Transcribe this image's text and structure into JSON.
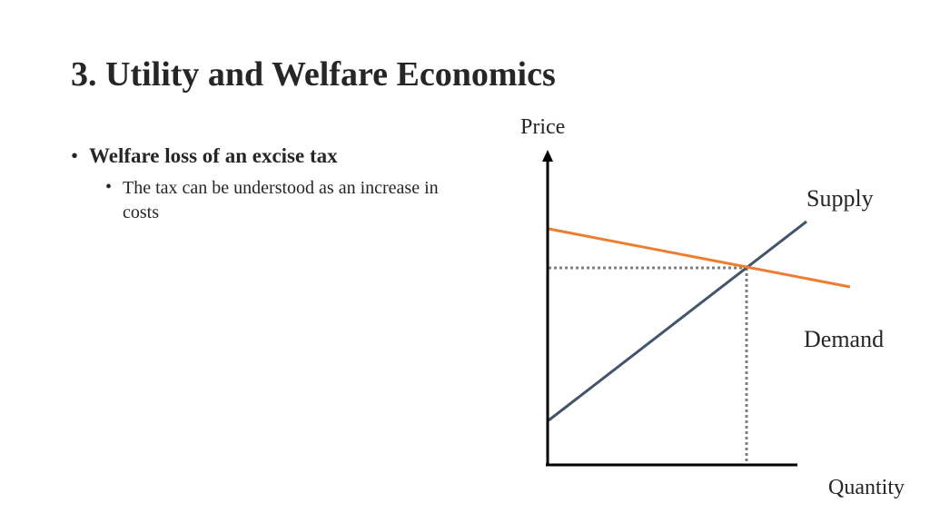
{
  "slide": {
    "title": "3. Utility and Welfare Economics",
    "bullets": [
      {
        "text": "Welfare loss of an excise tax",
        "sub_bullets": [
          {
            "text": "The tax can be understood as an increase in costs"
          }
        ]
      }
    ]
  },
  "diagram": {
    "axis_labels": {
      "y": "Price",
      "x": "Quantity"
    },
    "curves": {
      "supply": {
        "label": "Supply",
        "color": "#44546a"
      },
      "demand": {
        "label": "Demand",
        "color": "#ed7d31"
      }
    },
    "equilibrium_guide_color": "#7f7f7f"
  }
}
